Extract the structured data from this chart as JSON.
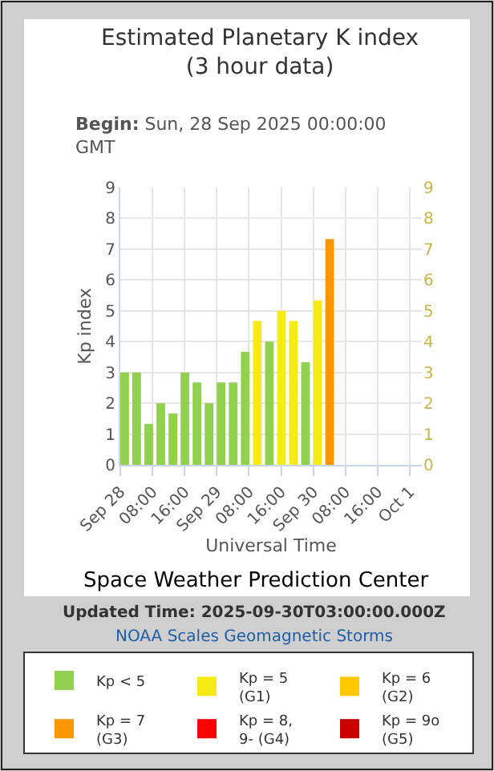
{
  "chart_data": {
    "type": "bar",
    "title": "Estimated Planetary K index\n(3 hour data)",
    "subtitle": "Begin: Sun, 28 Sep 2025 00:00:00 GMT",
    "xlabel": "Universal Time",
    "ylabel": "Kp index",
    "x": [
      "2025-09-28T00:00",
      "2025-09-28T03:00",
      "2025-09-28T06:00",
      "2025-09-28T09:00",
      "2025-09-28T12:00",
      "2025-09-28T15:00",
      "2025-09-28T18:00",
      "2025-09-28T21:00",
      "2025-09-29T00:00",
      "2025-09-29T03:00",
      "2025-09-29T06:00",
      "2025-09-29T09:00",
      "2025-09-29T12:00",
      "2025-09-29T15:00",
      "2025-09-29T18:00",
      "2025-09-29T21:00",
      "2025-09-30T00:00",
      "2025-09-30T03:00"
    ],
    "series": [
      {
        "name": "Kp < 5",
        "color": "#92d050",
        "values": [
          3,
          3,
          1.33,
          2,
          1.67,
          3,
          2.67,
          2,
          2.67,
          2.67,
          3.67,
          null,
          4,
          null,
          null,
          3.33,
          null,
          null
        ]
      },
      {
        "name": "Kp = 5 (G1)",
        "color": "#f6eb14",
        "values": [
          null,
          null,
          null,
          null,
          null,
          null,
          null,
          null,
          null,
          null,
          null,
          4.67,
          null,
          5,
          4.67,
          null,
          5.33,
          null
        ]
      },
      {
        "name": "Kp = 6 (G2)",
        "color": "#ffc800",
        "values": [
          null,
          null,
          null,
          null,
          null,
          null,
          null,
          null,
          null,
          null,
          null,
          null,
          null,
          null,
          null,
          null,
          null,
          null
        ]
      },
      {
        "name": "Kp = 7 (G3)",
        "color": "#ff9600",
        "values": [
          null,
          null,
          null,
          null,
          null,
          null,
          null,
          null,
          null,
          null,
          null,
          null,
          null,
          null,
          null,
          null,
          null,
          7.33
        ]
      },
      {
        "name": "Kp = 8, 9- (G4)",
        "color": "#ff0000",
        "values": [
          null,
          null,
          null,
          null,
          null,
          null,
          null,
          null,
          null,
          null,
          null,
          null,
          null,
          null,
          null,
          null,
          null,
          null
        ]
      },
      {
        "name": "Kp = 9o (G5)",
        "color": "#c80000",
        "values": [
          null,
          null,
          null,
          null,
          null,
          null,
          null,
          null,
          null,
          null,
          null,
          null,
          null,
          null,
          null,
          null,
          null,
          null
        ]
      }
    ],
    "xlim": [
      "2025-09-28T00:00",
      "2025-10-01T03:00"
    ],
    "xticks": [
      {
        "value": "2025-09-28T00:00",
        "label": "Sep 28"
      },
      {
        "value": "2025-09-28T08:00",
        "label": "08:00"
      },
      {
        "value": "2025-09-28T16:00",
        "label": "16:00"
      },
      {
        "value": "2025-09-29T00:00",
        "label": "Sep 29"
      },
      {
        "value": "2025-09-29T08:00",
        "label": "08:00"
      },
      {
        "value": "2025-09-29T16:00",
        "label": "16:00"
      },
      {
        "value": "2025-09-30T00:00",
        "label": "Sep 30"
      },
      {
        "value": "2025-09-30T08:00",
        "label": "08:00"
      },
      {
        "value": "2025-09-30T16:00",
        "label": "16:00"
      },
      {
        "value": "2025-10-01T00:00",
        "label": "Oct 1"
      }
    ],
    "ylim": [
      0,
      9
    ],
    "yticks": [
      0,
      1,
      2,
      3,
      4,
      5,
      6,
      7,
      8,
      9
    ],
    "y2lim": [
      0,
      9
    ],
    "y2ticks": [
      0,
      1,
      2,
      3,
      4,
      5,
      6,
      7,
      8,
      9
    ],
    "grid": true,
    "legend": "bottom",
    "annotations": [
      "Space Weather Prediction Center",
      "Updated Time: 2025-09-30T03:00:00.000Z",
      "NOAA Scales Geomagnetic Storms"
    ]
  }
}
